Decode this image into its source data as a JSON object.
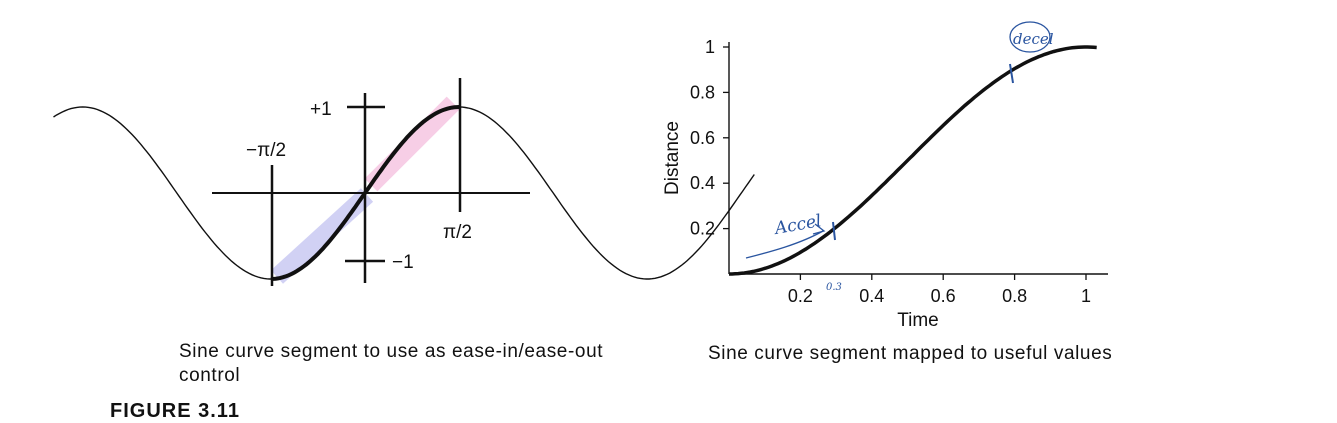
{
  "figure_label": "FIGURE 3.11",
  "colors": {
    "ink": "#111111",
    "annotation": "#2a55a0",
    "band_left": "#c9c9f2",
    "band_right": "#f6c6e2"
  },
  "chart_data": [
    {
      "type": "line",
      "title": "Sine curve segment to use as ease-in/ease-out control",
      "function": "sin(x)",
      "x_range": [
        -5.2,
        6.5
      ],
      "highlighted_segment": [
        -1.5708,
        1.5708
      ],
      "annotations": {
        "plus_one": "+1",
        "minus_one": "−1",
        "neg_half_pi": "−π/2",
        "pos_half_pi": "π/2"
      }
    },
    {
      "type": "line",
      "title": "Sine curve segment mapped to useful values",
      "xlabel": "Time",
      "ylabel": "Distance",
      "function": "(sin(pi*t - pi/2) + 1) / 2",
      "xlim": [
        0,
        1.06
      ],
      "ylim": [
        0,
        1.05
      ],
      "xticks": [
        0.2,
        0.4,
        0.6,
        0.8,
        1
      ],
      "yticks": [
        0.2,
        0.4,
        0.6,
        0.8,
        1
      ],
      "x_tick_labels": [
        "0.2",
        "0.4",
        "0.6",
        "0.8",
        "1"
      ],
      "y_tick_labels": [
        "0.2",
        "0.4",
        "0.6",
        "0.8",
        "1"
      ],
      "handwritten": {
        "accel": "Accel",
        "accel_value": "0.3",
        "decel": "decel"
      }
    }
  ]
}
